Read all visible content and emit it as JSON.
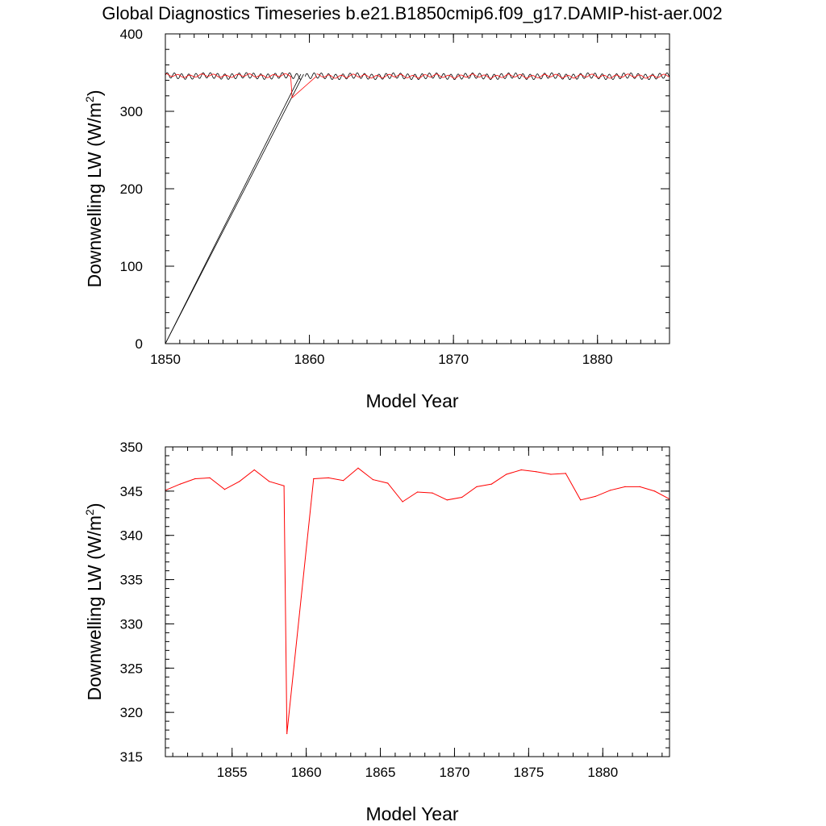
{
  "figure_title": "Global Diagnostics Timeseries b.e21.B1850cmip6.f09_g17.DAMIP-hist-aer.002",
  "chart_data": [
    {
      "type": "line",
      "title": "",
      "xlabel": "Model Year",
      "ylabel_main": "Downwelling LW (W/m",
      "ylabel_sup": "2",
      "ylabel_end": ")",
      "xlim": [
        1850,
        1885
      ],
      "ylim": [
        0,
        400
      ],
      "xticks": [
        1850,
        1860,
        1870,
        1880
      ],
      "yticks": [
        0,
        100,
        200,
        300,
        400
      ],
      "grid": false,
      "series": [
        {
          "color": "#000000",
          "style": "monthly",
          "segments": [
            {
              "x_start": 1850.0,
              "x_end": 1859.4,
              "mean": 345.6,
              "amp": 3.5,
              "period": 0.5
            },
            {
              "x_start": 1859.7,
              "x_end": 1885.0,
              "mean": 345.3,
              "amp": 3.5,
              "period": 0.5
            }
          ],
          "spikes": [
            {
              "from": [
                1850.0,
                0
              ],
              "to": [
                1859.4,
                348
              ]
            },
            {
              "from": [
                1850.0,
                0
              ],
              "to": [
                1859.6,
                348
              ]
            }
          ]
        },
        {
          "color": "#ff0000",
          "style": "monthly",
          "segments": [
            {
              "x_start": 1850.0,
              "x_end": 1858.7,
              "mean": 346.0,
              "amp": 1.6,
              "period": 0.83
            },
            {
              "x_start": 1860.5,
              "x_end": 1885.0,
              "mean": 345.4,
              "amp": 1.8,
              "period": 0.83
            }
          ],
          "spikes": [
            {
              "from": [
                1858.7,
                345.5
              ],
              "to": [
                1858.8,
                317.5
              ]
            },
            {
              "from": [
                1858.8,
                317.5
              ],
              "to": [
                1860.5,
                345.5
              ]
            }
          ]
        }
      ]
    },
    {
      "type": "line",
      "title": "",
      "xlabel": "Model Year",
      "ylabel_main": "Downwelling LW (W/m",
      "ylabel_sup": "2",
      "ylabel_end": ")",
      "xlim": [
        1850.5,
        1884.5
      ],
      "ylim": [
        315,
        350
      ],
      "xticks": [
        1855,
        1860,
        1865,
        1870,
        1875,
        1880
      ],
      "yticks": [
        315,
        320,
        325,
        330,
        335,
        340,
        345,
        350
      ],
      "grid": false,
      "series": [
        {
          "color": "#ff0000",
          "x": [
            1850.5,
            1851.5,
            1852.5,
            1853.5,
            1854.5,
            1855.5,
            1856.5,
            1857.5,
            1858.5,
            1858.7,
            1860.5,
            1861.5,
            1862.5,
            1863.5,
            1864.5,
            1865.5,
            1866.5,
            1867.5,
            1868.5,
            1869.5,
            1870.5,
            1871.5,
            1872.5,
            1873.5,
            1874.5,
            1875.5,
            1876.5,
            1877.5,
            1878.5,
            1879.5,
            1880.5,
            1881.5,
            1882.5,
            1883.5,
            1884.5
          ],
          "y": [
            345.1,
            345.8,
            346.4,
            346.5,
            345.2,
            346.1,
            347.4,
            346.1,
            345.6,
            317.6,
            346.4,
            346.5,
            346.2,
            347.6,
            346.3,
            345.9,
            343.8,
            344.9,
            344.8,
            344.0,
            344.3,
            345.5,
            345.8,
            346.9,
            347.4,
            347.2,
            346.9,
            347.0,
            344.0,
            344.4,
            345.1,
            345.5,
            345.5,
            345.0,
            344.1
          ]
        }
      ]
    }
  ]
}
